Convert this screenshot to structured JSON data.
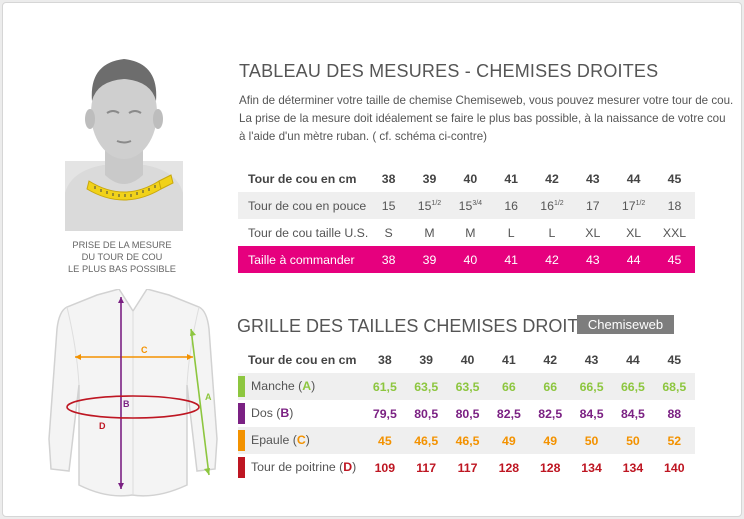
{
  "colors": {
    "pink": "#e6007e",
    "green": "#8dc63f",
    "purple": "#7b2183",
    "orange": "#f39200",
    "red": "#be1622"
  },
  "table1": {
    "title": "TABLEAU DES MESURES - CHEMISES DROITES",
    "intro": [
      "Afin de déterminer votre taille de chemise Chemiseweb, vous pouvez mesurer votre tour de cou.",
      "La prise de la mesure doit idéalement se faire le plus bas possible, à la naissance de votre cou",
      "à l'aide d'un mètre ruban. ( cf. schéma ci-contre)"
    ],
    "rows": [
      {
        "label": "Tour de cou en cm",
        "cells": [
          [
            "38"
          ],
          [
            "39"
          ],
          [
            "40"
          ],
          [
            "41"
          ],
          [
            "42"
          ],
          [
            "43"
          ],
          [
            "44"
          ],
          [
            "45"
          ]
        ]
      },
      {
        "label": "Tour de cou en pouce",
        "cells": [
          [
            "15"
          ],
          [
            "15",
            "1/2"
          ],
          [
            "15",
            "3/4"
          ],
          [
            "16"
          ],
          [
            "16",
            "1/2"
          ],
          [
            "17"
          ],
          [
            "17",
            "1/2"
          ],
          [
            "18"
          ]
        ]
      },
      {
        "label": "Tour de cou taille U.S.",
        "cells": [
          [
            "S"
          ],
          [
            "M"
          ],
          [
            "M"
          ],
          [
            "L"
          ],
          [
            "L"
          ],
          [
            "XL"
          ],
          [
            "XL"
          ],
          [
            "XXL"
          ]
        ]
      },
      {
        "label": "Taille à commander",
        "cells": [
          [
            "38"
          ],
          [
            "39"
          ],
          [
            "40"
          ],
          [
            "41"
          ],
          [
            "42"
          ],
          [
            "43"
          ],
          [
            "44"
          ],
          [
            "45"
          ]
        ]
      }
    ]
  },
  "caption": [
    "PRISE DE LA MESURE",
    "DU TOUR DE COU",
    "LE PLUS BAS POSSIBLE"
  ],
  "table2": {
    "title": "GRILLE DES TAILLES CHEMISES DROITES",
    "brand": "Chemiseweb",
    "header": {
      "label": "Tour de cou en cm",
      "cells": [
        "38",
        "39",
        "40",
        "41",
        "42",
        "43",
        "44",
        "45"
      ]
    },
    "rows": [
      {
        "pre": "Manche (",
        "letter": "A",
        "post": ")",
        "color": "#8dc63f",
        "cells": [
          "61,5",
          "63,5",
          "63,5",
          "66",
          "66",
          "66,5",
          "66,5",
          "68,5"
        ]
      },
      {
        "pre": "Dos (",
        "letter": "B",
        "post": ")",
        "color": "#7b2183",
        "cells": [
          "79,5",
          "80,5",
          "80,5",
          "82,5",
          "82,5",
          "84,5",
          "84,5",
          "88"
        ]
      },
      {
        "pre": "Epaule (",
        "letter": "C",
        "post": ")",
        "color": "#f39200",
        "cells": [
          "45",
          "46,5",
          "46,5",
          "49",
          "49",
          "50",
          "50",
          "52"
        ]
      },
      {
        "pre": "Tour de poitrine (",
        "letter": "D",
        "post": ")",
        "color": "#be1622",
        "cells": [
          "109",
          "117",
          "117",
          "128",
          "128",
          "134",
          "134",
          "140"
        ]
      }
    ]
  },
  "shirt_labels": {
    "a": "A",
    "b": "B",
    "c": "C",
    "d": "D"
  }
}
